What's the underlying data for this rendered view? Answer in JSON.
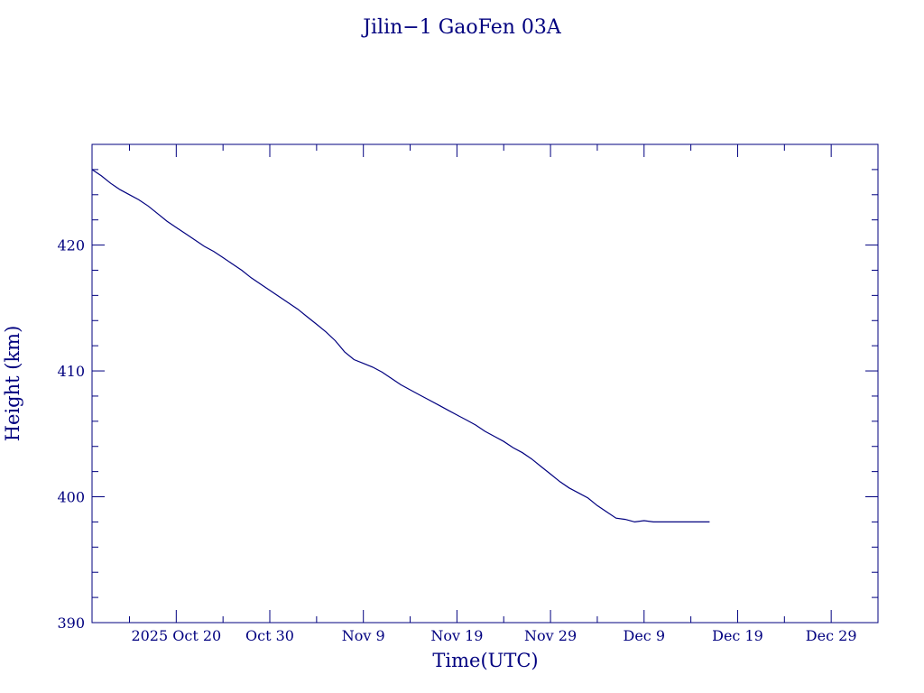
{
  "chart_data": {
    "type": "line",
    "title": "Jilin−1 GaoFen 03A",
    "xlabel": "Time(UTC)",
    "ylabel": "Height (km)",
    "xlim": [
      "2025-10-11T00:00",
      "2026-01-03T00:00"
    ],
    "ylim": [
      390,
      428
    ],
    "x_ticks": [
      {
        "date": "2025-10-20",
        "label": "2025 Oct 20"
      },
      {
        "date": "2025-10-30",
        "label": "Oct 30"
      },
      {
        "date": "2025-11-09",
        "label": "Nov  9"
      },
      {
        "date": "2025-11-19",
        "label": "Nov 19"
      },
      {
        "date": "2025-11-29",
        "label": "Nov 29"
      },
      {
        "date": "2025-12-09",
        "label": "Dec  9"
      },
      {
        "date": "2025-12-19",
        "label": "Dec 19"
      },
      {
        "date": "2025-12-29",
        "label": "Dec 29"
      }
    ],
    "y_ticks": [
      390,
      400,
      410,
      420
    ],
    "grid": false,
    "colors": {
      "line": "#00007f",
      "axes": "#00007f",
      "text": "#00007f",
      "background": "#ffffff"
    },
    "series": [
      {
        "x": [
          "2025-10-11",
          "2025-10-12",
          "2025-10-13",
          "2025-10-14",
          "2025-10-15",
          "2025-10-16",
          "2025-10-17",
          "2025-10-18",
          "2025-10-19",
          "2025-10-20",
          "2025-10-21",
          "2025-10-22",
          "2025-10-23",
          "2025-10-24",
          "2025-10-25",
          "2025-10-26",
          "2025-10-27",
          "2025-10-28",
          "2025-10-29",
          "2025-10-30",
          "2025-10-31",
          "2025-11-01",
          "2025-11-02",
          "2025-11-03",
          "2025-11-04",
          "2025-11-05",
          "2025-11-06",
          "2025-11-07",
          "2025-11-08",
          "2025-11-09",
          "2025-11-10",
          "2025-11-11",
          "2025-11-12",
          "2025-11-13",
          "2025-11-14",
          "2025-11-15",
          "2025-11-16",
          "2025-11-17",
          "2025-11-18",
          "2025-11-19",
          "2025-11-20",
          "2025-11-21",
          "2025-11-22",
          "2025-11-23",
          "2025-11-24",
          "2025-11-25",
          "2025-11-26",
          "2025-11-27",
          "2025-11-28",
          "2025-11-29",
          "2025-11-30",
          "2025-12-01",
          "2025-12-02",
          "2025-12-03",
          "2025-12-04",
          "2025-12-05",
          "2025-12-06",
          "2025-12-07",
          "2025-12-08",
          "2025-12-09",
          "2025-12-10",
          "2025-12-11",
          "2025-12-12",
          "2025-12-13",
          "2025-12-14",
          "2025-12-15",
          "2025-12-16"
        ],
        "values": [
          426.0,
          425.5,
          424.9,
          424.4,
          424.0,
          423.6,
          423.1,
          422.5,
          421.9,
          421.4,
          420.9,
          420.4,
          419.9,
          419.5,
          419.0,
          418.5,
          418.0,
          417.4,
          416.9,
          416.4,
          415.9,
          415.4,
          414.9,
          414.3,
          413.7,
          413.1,
          412.4,
          411.5,
          410.9,
          410.6,
          410.3,
          409.9,
          409.4,
          408.9,
          408.5,
          408.1,
          407.7,
          407.3,
          406.9,
          406.5,
          406.1,
          405.7,
          405.2,
          404.8,
          404.4,
          403.9,
          403.5,
          403.0,
          402.4,
          401.8,
          401.2,
          400.7,
          400.3,
          399.9,
          399.3,
          398.8,
          398.3,
          398.2,
          398.0,
          398.1,
          398.0,
          398.0,
          398.0,
          398.0,
          398.0,
          398.0,
          398.0
        ]
      }
    ]
  }
}
